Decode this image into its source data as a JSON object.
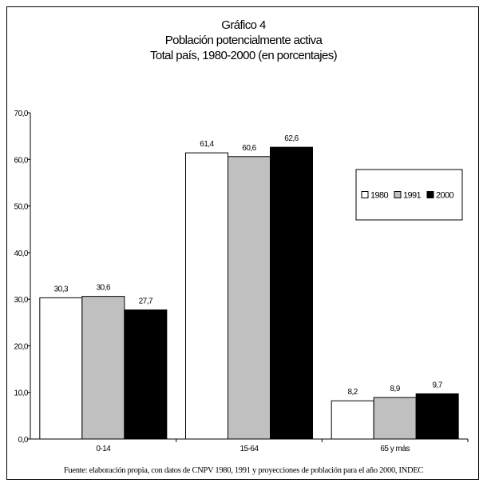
{
  "chart_data": {
    "type": "bar",
    "title": "Gráfico 4",
    "subtitle": [
      "Población potencialmente activa",
      "Total país, 1980-2000 (en porcentajes)"
    ],
    "categories": [
      "0-14",
      "15-64",
      "65 y más"
    ],
    "series": [
      {
        "name": "1980",
        "values": [
          30.3,
          61.4,
          8.2
        ],
        "labels": [
          "30,3",
          "61,4",
          "8,2"
        ],
        "color": "#ffffff"
      },
      {
        "name": "1991",
        "values": [
          30.6,
          60.6,
          8.9
        ],
        "labels": [
          "30,6",
          "60,6",
          "8,9"
        ],
        "color": "#c0c0c0"
      },
      {
        "name": "2000",
        "values": [
          27.7,
          62.6,
          9.7
        ],
        "labels": [
          "27,7",
          "62,6",
          "9,7"
        ],
        "color": "#000000"
      }
    ],
    "ylim": [
      0,
      70
    ],
    "yticks": [
      0,
      10,
      20,
      30,
      40,
      50,
      60,
      70
    ],
    "ytick_labels": [
      "0,0",
      "10,0",
      "20,0",
      "30,0",
      "40,0",
      "50,0",
      "60,0",
      "70,0"
    ],
    "xlabel": "",
    "ylabel": "",
    "grid": false,
    "legend_position": "right",
    "source": "Fuente: elaboración propia, con datos de CNPV 1980, 1991 y proyecciones de población para el año 2000, INDEC"
  }
}
